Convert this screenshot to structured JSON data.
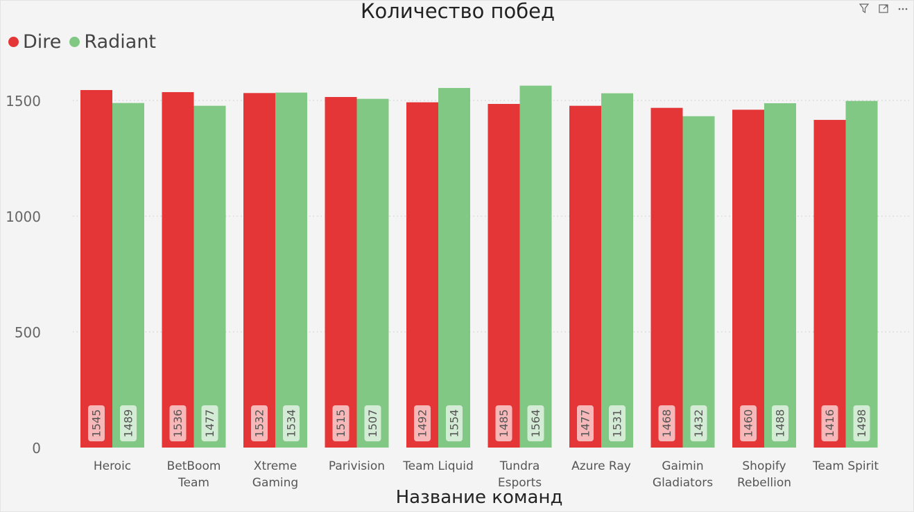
{
  "colors": {
    "dire": "#e43636",
    "radiant": "#80c884",
    "dire_label_bg": "#f6b8b8",
    "radiant_label_bg": "#d4ecd5"
  },
  "visual_header": {
    "icons": [
      "filter-icon",
      "focus-mode-icon",
      "more-options-icon"
    ]
  },
  "chart_data": {
    "type": "bar",
    "title": "Количество побед",
    "xlabel": "Название команд",
    "ylabel": "",
    "ylim": [
      0,
      1800
    ],
    "yticks": [
      0,
      500,
      1000,
      1500
    ],
    "grid": true,
    "legend_position": "top-left",
    "categories": [
      [
        "Heroic"
      ],
      [
        "BetBoom",
        "Team"
      ],
      [
        "Xtreme",
        "Gaming"
      ],
      [
        "Parivision"
      ],
      [
        "Team Liquid"
      ],
      [
        "Tundra",
        "Esports"
      ],
      [
        "Azure Ray"
      ],
      [
        "Gaimin",
        "Gladiators"
      ],
      [
        "Shopify",
        "Rebellion"
      ],
      [
        "Team Spirit"
      ]
    ],
    "series": [
      {
        "name": "Dire",
        "values": [
          1545,
          1536,
          1532,
          1515,
          1492,
          1485,
          1477,
          1468,
          1460,
          1416
        ]
      },
      {
        "name": "Radiant",
        "values": [
          1489,
          1477,
          1534,
          1507,
          1554,
          1564,
          1531,
          1432,
          1488,
          1498
        ]
      }
    ]
  }
}
